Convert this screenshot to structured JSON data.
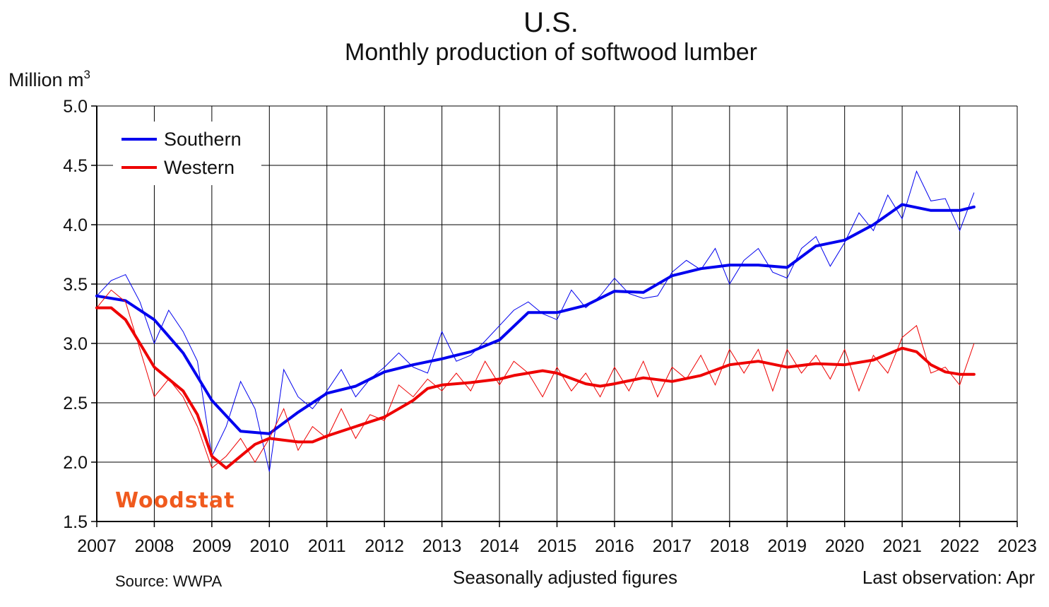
{
  "chart_data": {
    "type": "line",
    "title": "U.S.",
    "subtitle": "Monthly production of softwood lumber",
    "ylabel": "Million m",
    "ylabel_superscript": "3",
    "ylim": [
      1.5,
      5.0
    ],
    "xlim": [
      2007,
      2023
    ],
    "y_ticks": [
      "1.5",
      "2.0",
      "2.5",
      "3.0",
      "3.5",
      "4.0",
      "4.5",
      "5.0"
    ],
    "x_ticks": [
      "2007",
      "2008",
      "2009",
      "2010",
      "2011",
      "2012",
      "2013",
      "2014",
      "2015",
      "2016",
      "2017",
      "2018",
      "2019",
      "2020",
      "2021",
      "2022",
      "2023"
    ],
    "grid": true,
    "legend_position": "top-left",
    "series": [
      {
        "name": "Southern",
        "color": "#0000ee",
        "trend_points": [
          [
            2007.0,
            3.4
          ],
          [
            2007.5,
            3.36
          ],
          [
            2008.0,
            3.2
          ],
          [
            2008.5,
            2.92
          ],
          [
            2009.0,
            2.52
          ],
          [
            2009.5,
            2.26
          ],
          [
            2010.0,
            2.24
          ],
          [
            2010.5,
            2.42
          ],
          [
            2011.0,
            2.58
          ],
          [
            2011.5,
            2.64
          ],
          [
            2012.0,
            2.76
          ],
          [
            2012.5,
            2.82
          ],
          [
            2013.0,
            2.87
          ],
          [
            2013.5,
            2.93
          ],
          [
            2014.0,
            3.03
          ],
          [
            2014.5,
            3.26
          ],
          [
            2015.0,
            3.26
          ],
          [
            2015.5,
            3.32
          ],
          [
            2016.0,
            3.44
          ],
          [
            2016.5,
            3.43
          ],
          [
            2017.0,
            3.57
          ],
          [
            2017.5,
            3.63
          ],
          [
            2018.0,
            3.66
          ],
          [
            2018.5,
            3.66
          ],
          [
            2019.0,
            3.64
          ],
          [
            2019.5,
            3.82
          ],
          [
            2020.0,
            3.87
          ],
          [
            2020.5,
            4.0
          ],
          [
            2021.0,
            4.17
          ],
          [
            2021.5,
            4.12
          ],
          [
            2022.0,
            4.12
          ],
          [
            2022.25,
            4.15
          ]
        ],
        "raw_points": [
          [
            2007.0,
            3.4
          ],
          [
            2007.25,
            3.53
          ],
          [
            2007.5,
            3.58
          ],
          [
            2007.75,
            3.35
          ],
          [
            2008.0,
            3.0
          ],
          [
            2008.25,
            3.28
          ],
          [
            2008.5,
            3.1
          ],
          [
            2008.75,
            2.85
          ],
          [
            2009.0,
            2.05
          ],
          [
            2009.25,
            2.3
          ],
          [
            2009.5,
            2.68
          ],
          [
            2009.75,
            2.45
          ],
          [
            2010.0,
            1.92
          ],
          [
            2010.25,
            2.78
          ],
          [
            2010.5,
            2.55
          ],
          [
            2010.75,
            2.45
          ],
          [
            2011.0,
            2.6
          ],
          [
            2011.25,
            2.78
          ],
          [
            2011.5,
            2.55
          ],
          [
            2011.75,
            2.7
          ],
          [
            2012.0,
            2.8
          ],
          [
            2012.25,
            2.92
          ],
          [
            2012.5,
            2.8
          ],
          [
            2012.75,
            2.75
          ],
          [
            2013.0,
            3.1
          ],
          [
            2013.25,
            2.85
          ],
          [
            2013.5,
            2.9
          ],
          [
            2013.75,
            3.02
          ],
          [
            2014.0,
            3.15
          ],
          [
            2014.25,
            3.28
          ],
          [
            2014.5,
            3.35
          ],
          [
            2014.75,
            3.25
          ],
          [
            2015.0,
            3.2
          ],
          [
            2015.25,
            3.45
          ],
          [
            2015.5,
            3.3
          ],
          [
            2015.75,
            3.4
          ],
          [
            2016.0,
            3.55
          ],
          [
            2016.25,
            3.42
          ],
          [
            2016.5,
            3.38
          ],
          [
            2016.75,
            3.4
          ],
          [
            2017.0,
            3.6
          ],
          [
            2017.25,
            3.7
          ],
          [
            2017.5,
            3.62
          ],
          [
            2017.75,
            3.8
          ],
          [
            2018.0,
            3.5
          ],
          [
            2018.25,
            3.7
          ],
          [
            2018.5,
            3.8
          ],
          [
            2018.75,
            3.6
          ],
          [
            2019.0,
            3.55
          ],
          [
            2019.25,
            3.8
          ],
          [
            2019.5,
            3.9
          ],
          [
            2019.75,
            3.65
          ],
          [
            2020.0,
            3.85
          ],
          [
            2020.25,
            4.1
          ],
          [
            2020.5,
            3.95
          ],
          [
            2020.75,
            4.25
          ],
          [
            2021.0,
            4.05
          ],
          [
            2021.25,
            4.45
          ],
          [
            2021.5,
            4.2
          ],
          [
            2021.75,
            4.22
          ],
          [
            2022.0,
            3.95
          ],
          [
            2022.25,
            4.27
          ]
        ]
      },
      {
        "name": "Western",
        "color": "#ee0000",
        "trend_points": [
          [
            2007.0,
            3.3
          ],
          [
            2007.25,
            3.3
          ],
          [
            2007.5,
            3.2
          ],
          [
            2007.75,
            3.0
          ],
          [
            2008.0,
            2.8
          ],
          [
            2008.5,
            2.6
          ],
          [
            2008.75,
            2.4
          ],
          [
            2009.0,
            2.05
          ],
          [
            2009.25,
            1.95
          ],
          [
            2009.5,
            2.05
          ],
          [
            2009.75,
            2.15
          ],
          [
            2010.0,
            2.2
          ],
          [
            2010.5,
            2.17
          ],
          [
            2010.75,
            2.17
          ],
          [
            2011.0,
            2.22
          ],
          [
            2011.5,
            2.3
          ],
          [
            2012.0,
            2.38
          ],
          [
            2012.5,
            2.52
          ],
          [
            2012.75,
            2.62
          ],
          [
            2013.0,
            2.65
          ],
          [
            2013.5,
            2.67
          ],
          [
            2014.0,
            2.7
          ],
          [
            2014.25,
            2.73
          ],
          [
            2014.75,
            2.77
          ],
          [
            2015.0,
            2.75
          ],
          [
            2015.5,
            2.66
          ],
          [
            2015.75,
            2.64
          ],
          [
            2016.0,
            2.66
          ],
          [
            2016.5,
            2.71
          ],
          [
            2017.0,
            2.68
          ],
          [
            2017.5,
            2.73
          ],
          [
            2018.0,
            2.82
          ],
          [
            2018.5,
            2.85
          ],
          [
            2019.0,
            2.8
          ],
          [
            2019.5,
            2.83
          ],
          [
            2020.0,
            2.82
          ],
          [
            2020.5,
            2.86
          ],
          [
            2021.0,
            2.96
          ],
          [
            2021.25,
            2.93
          ],
          [
            2021.5,
            2.82
          ],
          [
            2021.75,
            2.76
          ],
          [
            2022.0,
            2.74
          ],
          [
            2022.25,
            2.74
          ]
        ],
        "raw_points": [
          [
            2007.0,
            3.3
          ],
          [
            2007.25,
            3.45
          ],
          [
            2007.5,
            3.35
          ],
          [
            2007.75,
            2.95
          ],
          [
            2008.0,
            2.55
          ],
          [
            2008.25,
            2.7
          ],
          [
            2008.5,
            2.55
          ],
          [
            2008.75,
            2.3
          ],
          [
            2009.0,
            1.95
          ],
          [
            2009.25,
            2.05
          ],
          [
            2009.5,
            2.2
          ],
          [
            2009.75,
            2.0
          ],
          [
            2010.0,
            2.2
          ],
          [
            2010.25,
            2.45
          ],
          [
            2010.5,
            2.1
          ],
          [
            2010.75,
            2.3
          ],
          [
            2011.0,
            2.2
          ],
          [
            2011.25,
            2.45
          ],
          [
            2011.5,
            2.2
          ],
          [
            2011.75,
            2.4
          ],
          [
            2012.0,
            2.35
          ],
          [
            2012.25,
            2.65
          ],
          [
            2012.5,
            2.55
          ],
          [
            2012.75,
            2.7
          ],
          [
            2013.0,
            2.6
          ],
          [
            2013.25,
            2.75
          ],
          [
            2013.5,
            2.6
          ],
          [
            2013.75,
            2.85
          ],
          [
            2014.0,
            2.65
          ],
          [
            2014.25,
            2.85
          ],
          [
            2014.5,
            2.75
          ],
          [
            2014.75,
            2.55
          ],
          [
            2015.0,
            2.8
          ],
          [
            2015.25,
            2.6
          ],
          [
            2015.5,
            2.75
          ],
          [
            2015.75,
            2.55
          ],
          [
            2016.0,
            2.8
          ],
          [
            2016.25,
            2.6
          ],
          [
            2016.5,
            2.85
          ],
          [
            2016.75,
            2.55
          ],
          [
            2017.0,
            2.8
          ],
          [
            2017.25,
            2.7
          ],
          [
            2017.5,
            2.9
          ],
          [
            2017.75,
            2.65
          ],
          [
            2018.0,
            2.95
          ],
          [
            2018.25,
            2.75
          ],
          [
            2018.5,
            2.95
          ],
          [
            2018.75,
            2.6
          ],
          [
            2019.0,
            2.95
          ],
          [
            2019.25,
            2.75
          ],
          [
            2019.5,
            2.9
          ],
          [
            2019.75,
            2.7
          ],
          [
            2020.0,
            2.95
          ],
          [
            2020.25,
            2.6
          ],
          [
            2020.5,
            2.9
          ],
          [
            2020.75,
            2.75
          ],
          [
            2021.0,
            3.05
          ],
          [
            2021.25,
            3.15
          ],
          [
            2021.5,
            2.75
          ],
          [
            2021.75,
            2.8
          ],
          [
            2022.0,
            2.65
          ],
          [
            2022.25,
            3.0
          ]
        ]
      }
    ]
  },
  "footer": {
    "source": "Source: WWPA",
    "note": "Seasonally adjusted figures",
    "last_observation": "Last observation: Apr"
  },
  "logo_text": "Woodstat",
  "logo_color": "#f05a1e"
}
